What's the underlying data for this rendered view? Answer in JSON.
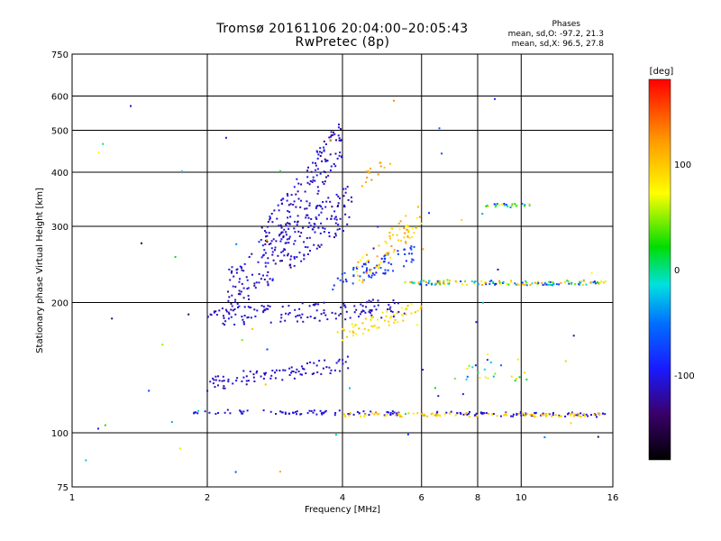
{
  "title": {
    "line1": "Tromsø 20161106 20:04:00–20:05:43",
    "line2": "RwPretec (8p)"
  },
  "stats": {
    "heading": "Phases",
    "line_o": "mean, sd,O: -97.2, 21.3",
    "line_x": "mean, sd,X:  96.5, 27.8"
  },
  "colorbar": {
    "label": "[deg]",
    "ticks": [
      "100",
      "0",
      "-100"
    ],
    "tick_values": [
      100,
      0,
      -100
    ],
    "range": [
      -180,
      180
    ]
  },
  "chart_data": {
    "type": "scatter",
    "xlabel": "Frequency [MHz]",
    "ylabel": "Stationary phase Virtual Height [km]",
    "xscale": "log",
    "yscale": "log",
    "xlim": [
      1,
      16
    ],
    "ylim": [
      75,
      750
    ],
    "x_ticks": [
      1,
      2,
      4,
      6,
      8,
      10,
      16
    ],
    "y_ticks": [
      75,
      100,
      200,
      300,
      400,
      500,
      600,
      750
    ],
    "x_tick_labels": [
      "1",
      "2",
      "4",
      "6",
      "8",
      "10",
      "16"
    ],
    "y_tick_labels": [
      "75",
      "100",
      "200",
      "300",
      "400",
      "500",
      "600",
      "750"
    ],
    "grid": true,
    "traces": [
      {
        "f": [
          1.85,
          15.5
        ],
        "h": [
          112,
          110
        ],
        "phase": [
          -110,
          -100
        ],
        "n": 150,
        "jitter": 0.012
      },
      {
        "f": [
          4.0,
          15.0
        ],
        "h": [
          110,
          110
        ],
        "phase": [
          80,
          110
        ],
        "n": 90,
        "jitter": 0.01
      },
      {
        "f": [
          2.0,
          4.2
        ],
        "h": [
          130,
          145
        ],
        "phase": [
          -120,
          -100
        ],
        "n": 90,
        "jitter": 0.04
      },
      {
        "f": [
          2.0,
          5.5
        ],
        "h": [
          185,
          195
        ],
        "phase": [
          -120,
          -100
        ],
        "n": 140,
        "jitter": 0.05
      },
      {
        "f": [
          4.0,
          6.0
        ],
        "h": [
          170,
          195
        ],
        "phase": [
          70,
          110
        ],
        "n": 60,
        "jitter": 0.04
      },
      {
        "f": [
          2.2,
          4.2
        ],
        "h": [
          210,
          340
        ],
        "phase": [
          -130,
          -90
        ],
        "n": 220,
        "jitter": 0.12
      },
      {
        "f": [
          2.6,
          4.0
        ],
        "h": [
          260,
          480
        ],
        "phase": [
          -130,
          -90
        ],
        "n": 150,
        "jitter": 0.12
      },
      {
        "f": [
          3.8,
          5.8
        ],
        "h": [
          220,
          260
        ],
        "phase": [
          -100,
          -60
        ],
        "n": 70,
        "jitter": 0.05
      },
      {
        "f": [
          4.3,
          6.0
        ],
        "h": [
          230,
          320
        ],
        "phase": [
          70,
          130
        ],
        "n": 70,
        "jitter": 0.08
      },
      {
        "f": [
          4.4,
          5.2
        ],
        "h": [
          380,
          430
        ],
        "phase": [
          100,
          130
        ],
        "n": 15,
        "jitter": 0.04
      },
      {
        "f": [
          5.5,
          15.5
        ],
        "h": [
          222,
          222
        ],
        "phase": [
          -100,
          130
        ],
        "n": 140,
        "jitter": 0.012
      },
      {
        "f": [
          8.3,
          10.5
        ],
        "h": [
          335,
          335
        ],
        "phase": [
          -110,
          110
        ],
        "n": 25,
        "jitter": 0.01
      },
      {
        "f": [
          7.0,
          10.5
        ],
        "h": [
          140,
          140
        ],
        "phase": [
          -100,
          100
        ],
        "n": 25,
        "jitter": 0.06
      },
      {
        "f": [
          1.0,
          15.0
        ],
        "h": [
          80,
          600
        ],
        "phase": [
          -150,
          150
        ],
        "n": 60,
        "jitter": 0.0
      }
    ]
  }
}
